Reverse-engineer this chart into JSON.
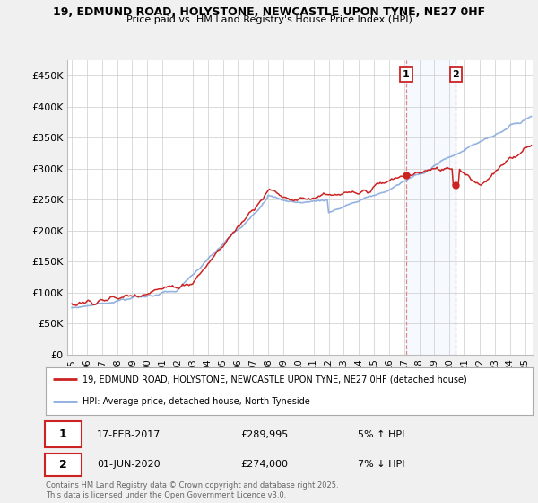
{
  "title1": "19, EDMUND ROAD, HOLYSTONE, NEWCASTLE UPON TYNE, NE27 0HF",
  "title2": "Price paid vs. HM Land Registry's House Price Index (HPI)",
  "ylabel_values": [
    0,
    50000,
    100000,
    150000,
    200000,
    250000,
    300000,
    350000,
    400000,
    450000
  ],
  "ylabel_labels": [
    "£0",
    "£50K",
    "£100K",
    "£150K",
    "£200K",
    "£250K",
    "£300K",
    "£350K",
    "£400K",
    "£450K"
  ],
  "ylim": [
    0,
    475000
  ],
  "line_color_red": "#cc2222",
  "line_color_blue": "#88aadd",
  "shade_color": "#ddeeff",
  "vline_color": "#dd8888",
  "annotation1": {
    "label": "1",
    "year": 2017.125,
    "price": 289995,
    "text": "17-FEB-2017",
    "price_text": "£289,995",
    "pct_text": "5% ↑ HPI"
  },
  "annotation2": {
    "label": "2",
    "year": 2020.417,
    "price": 274000,
    "text": "01-JUN-2020",
    "price_text": "£274,000",
    "pct_text": "7% ↓ HPI"
  },
  "legend_line1": "19, EDMUND ROAD, HOLYSTONE, NEWCASTLE UPON TYNE, NE27 0HF (detached house)",
  "legend_line2": "HPI: Average price, detached house, North Tyneside",
  "footer": "Contains HM Land Registry data © Crown copyright and database right 2025.\nThis data is licensed under the Open Government Licence v3.0.",
  "bg_color": "#f0f0f0",
  "plot_bg": "#ffffff",
  "grid_color": "#cccccc"
}
